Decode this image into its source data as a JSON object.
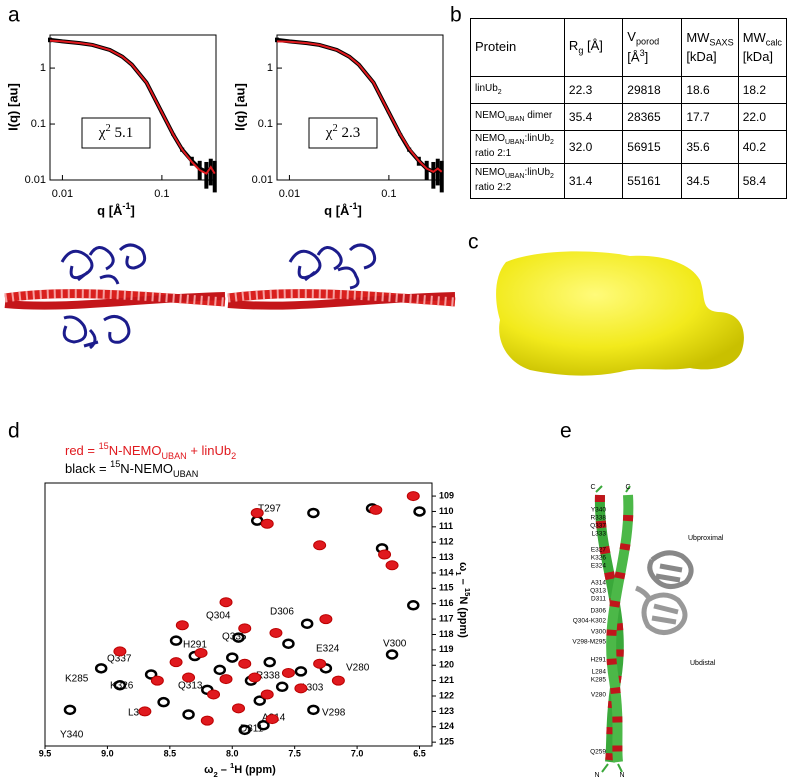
{
  "panel_labels": [
    "a",
    "b",
    "c",
    "d",
    "e"
  ],
  "saxs": {
    "plots": [
      {
        "y_label": "I(q) [au]",
        "x_label": [
          "q [Å",
          {
            "sup": "-1"
          },
          "]"
        ],
        "chi_label": [
          "χ",
          {
            "sup": "2"
          },
          " 5.1"
        ],
        "log": true,
        "xlim": [
          0.0075,
          0.35
        ],
        "ylim": [
          0.01,
          3.9
        ],
        "xticks": [
          0.01,
          0.1
        ],
        "yticks": [
          0.01,
          0.1,
          1
        ],
        "data_color": "#000000",
        "fit_color": "#e0191e",
        "q": [
          0.0075,
          0.01,
          0.015,
          0.02,
          0.03,
          0.04,
          0.05,
          0.07,
          0.1,
          0.13,
          0.16,
          0.2,
          0.24,
          0.28,
          0.31,
          0.34
        ],
        "data": [
          3.2,
          3.0,
          2.8,
          2.6,
          2.1,
          1.6,
          1.15,
          0.55,
          0.16,
          0.065,
          0.035,
          0.022,
          0.016,
          0.014,
          0.016,
          0.014
        ],
        "errors": [
          0.3,
          0.05,
          0.04,
          0.03,
          0.02,
          0.02,
          0.015,
          0.01,
          0.005,
          0.003,
          0.003,
          0.004,
          0.006,
          0.007,
          0.008,
          0.008
        ],
        "fit": [
          3.1,
          3.0,
          2.8,
          2.6,
          2.1,
          1.6,
          1.15,
          0.55,
          0.16,
          0.065,
          0.035,
          0.021,
          0.015,
          0.013,
          0.017,
          0.013
        ]
      },
      {
        "y_label": "I(q) [au]",
        "x_label": [
          "q [Å",
          {
            "sup": "-1"
          },
          "]"
        ],
        "chi_label": [
          "χ",
          {
            "sup": "2"
          },
          " 2.3"
        ],
        "log": true,
        "xlim": [
          0.0075,
          0.35
        ],
        "ylim": [
          0.01,
          3.9
        ],
        "xticks": [
          0.01,
          0.1
        ],
        "yticks": [
          0.01,
          0.1,
          1
        ],
        "data_color": "#000000",
        "fit_color": "#e0191e",
        "q": [
          0.0075,
          0.01,
          0.015,
          0.02,
          0.03,
          0.04,
          0.05,
          0.07,
          0.1,
          0.13,
          0.16,
          0.2,
          0.24,
          0.28,
          0.31,
          0.34
        ],
        "data": [
          3.2,
          3.0,
          2.8,
          2.6,
          2.1,
          1.6,
          1.15,
          0.55,
          0.16,
          0.065,
          0.035,
          0.022,
          0.016,
          0.014,
          0.016,
          0.014
        ],
        "errors": [
          0.3,
          0.05,
          0.04,
          0.03,
          0.02,
          0.02,
          0.015,
          0.01,
          0.005,
          0.003,
          0.003,
          0.004,
          0.006,
          0.007,
          0.008,
          0.008
        ],
        "fit": [
          3.0,
          2.95,
          2.8,
          2.6,
          2.1,
          1.6,
          1.15,
          0.55,
          0.16,
          0.066,
          0.036,
          0.022,
          0.016,
          0.014,
          0.016,
          0.014
        ]
      }
    ]
  },
  "table": {
    "header": [
      [
        "Protein"
      ],
      [
        "R",
        {
          "sub": "g"
        },
        " [Å]"
      ],
      [
        "V",
        {
          "sub": "porod"
        },
        " [Å",
        {
          "sup": "3"
        },
        "]"
      ],
      [
        "MW",
        {
          "sub": "SAXS"
        },
        " [kDa]"
      ],
      [
        "MW",
        {
          "sub": "calc"
        },
        " [kDa]"
      ]
    ],
    "rows": [
      [
        [
          "linUb",
          {
            "sub": "2"
          }
        ],
        "22.3",
        "29818",
        "18.6",
        "18.2"
      ],
      [
        [
          "NEMO",
          {
            "sub": "UBAN"
          },
          " dimer"
        ],
        "35.4",
        "28365",
        "17.7",
        "22.0"
      ],
      [
        [
          "NEMO",
          {
            "sub": "UBAN"
          },
          ":linUb",
          {
            "sub": "2"
          },
          " ratio 2:1"
        ],
        "32.0",
        "56915",
        "35.6",
        "40.2"
      ],
      [
        [
          "NEMO",
          {
            "sub": "UBAN"
          },
          ":linUb",
          {
            "sub": "2"
          },
          " ratio 2:2"
        ],
        "31.4",
        "55161",
        "34.5",
        "58.4"
      ]
    ]
  },
  "nmr": {
    "legend": [
      {
        "label": [
          "red = ",
          {
            "sup": "15"
          },
          "N-NEMO",
          {
            "sub": "UBAN"
          },
          " + linUb",
          {
            "sub": "2"
          }
        ],
        "color": "#e0191e"
      },
      {
        "label": [
          "black = ",
          {
            "sup": "15"
          },
          "N-NEMO",
          {
            "sub": "UBAN"
          }
        ],
        "color": "#000000"
      }
    ],
    "x_label": [
      "ω",
      {
        "sub": "2"
      },
      " – ",
      {
        "sup": "1"
      },
      "H (ppm)"
    ],
    "y_label": [
      "ω",
      {
        "sub": "1"
      },
      " – ",
      {
        "sup": "15"
      },
      "N (ppm)"
    ],
    "xlim": [
      9.5,
      6.4
    ],
    "ylim": [
      108.15,
      125.25
    ],
    "xticks": [
      9.5,
      {
        "value": 9,
        "label": "9.0"
      },
      8.5,
      {
        "value": 8,
        "label": "8.0"
      },
      7.5,
      {
        "value": 7,
        "label": "7.0"
      },
      6.5
    ],
    "yticks": [
      109,
      110,
      111,
      112,
      113,
      114,
      115,
      116,
      117,
      118,
      119,
      120,
      121,
      122,
      123,
      124,
      125
    ],
    "peak_labels": [
      "T297",
      "Q304",
      "D306",
      "Q335",
      "H291",
      "Q337",
      "E324",
      "V300",
      "V280",
      "K285",
      "K326",
      "Q313",
      "R338",
      "A303",
      "Y340",
      "L333",
      "A314",
      "V298",
      "D311"
    ],
    "black_peaks": [
      [
        9.3,
        122.9
      ],
      [
        9.05,
        120.2
      ],
      [
        8.9,
        121.3
      ],
      [
        8.65,
        120.6
      ],
      [
        8.45,
        118.4
      ],
      [
        8.3,
        119.4
      ],
      [
        8.2,
        121.6
      ],
      [
        8.1,
        120.3
      ],
      [
        8.0,
        119.5
      ],
      [
        7.95,
        118.2
      ],
      [
        7.85,
        121.0
      ],
      [
        7.78,
        122.3
      ],
      [
        7.7,
        119.8
      ],
      [
        7.6,
        121.4
      ],
      [
        7.55,
        118.6
      ],
      [
        7.45,
        120.4
      ],
      [
        7.35,
        122.9
      ],
      [
        7.25,
        120.2
      ],
      [
        7.4,
        117.3
      ],
      [
        7.75,
        123.9
      ],
      [
        7.9,
        124.2
      ],
      [
        8.55,
        122.4
      ],
      [
        6.72,
        119.3
      ],
      [
        7.8,
        110.6
      ],
      [
        6.88,
        109.8
      ],
      [
        6.8,
        112.4
      ],
      [
        6.5,
        110.0
      ],
      [
        6.55,
        116.1
      ],
      [
        7.35,
        110.1
      ],
      [
        8.35,
        123.2
      ]
    ],
    "red_peaks": [
      [
        8.45,
        119.8
      ],
      [
        8.35,
        120.8
      ],
      [
        8.25,
        119.2
      ],
      [
        8.15,
        121.9
      ],
      [
        8.05,
        120.9
      ],
      [
        7.95,
        122.8
      ],
      [
        7.9,
        119.9
      ],
      [
        7.82,
        120.8
      ],
      [
        7.72,
        121.9
      ],
      [
        7.65,
        117.9
      ],
      [
        7.55,
        120.5
      ],
      [
        7.45,
        121.5
      ],
      [
        7.3,
        119.9
      ],
      [
        7.9,
        117.6
      ],
      [
        8.4,
        117.4
      ],
      [
        8.6,
        121.0
      ],
      [
        8.7,
        123.0
      ],
      [
        7.68,
        123.5
      ],
      [
        7.8,
        110.1
      ],
      [
        7.72,
        110.8
      ],
      [
        7.3,
        112.2
      ],
      [
        6.78,
        112.8
      ],
      [
        6.72,
        113.5
      ],
      [
        6.85,
        109.9
      ],
      [
        6.55,
        109.0
      ],
      [
        8.05,
        115.9
      ],
      [
        7.25,
        117.0
      ],
      [
        8.9,
        119.1
      ],
      [
        7.15,
        121.0
      ],
      [
        8.2,
        123.6
      ]
    ]
  },
  "ribbon": {
    "ends": [
      "C",
      "C",
      "N",
      "N"
    ],
    "domains": [
      "Ubproximal",
      "Ubdistal"
    ],
    "residues": [
      "Y340",
      "R338",
      "Q337",
      "L333",
      "E327",
      "K326",
      "E324",
      "A314",
      "Q313",
      "D311",
      "D306",
      "Q304-K302",
      "V300",
      "V298-M295",
      "H291",
      "L284",
      "K285",
      "V280",
      "Q259"
    ]
  }
}
